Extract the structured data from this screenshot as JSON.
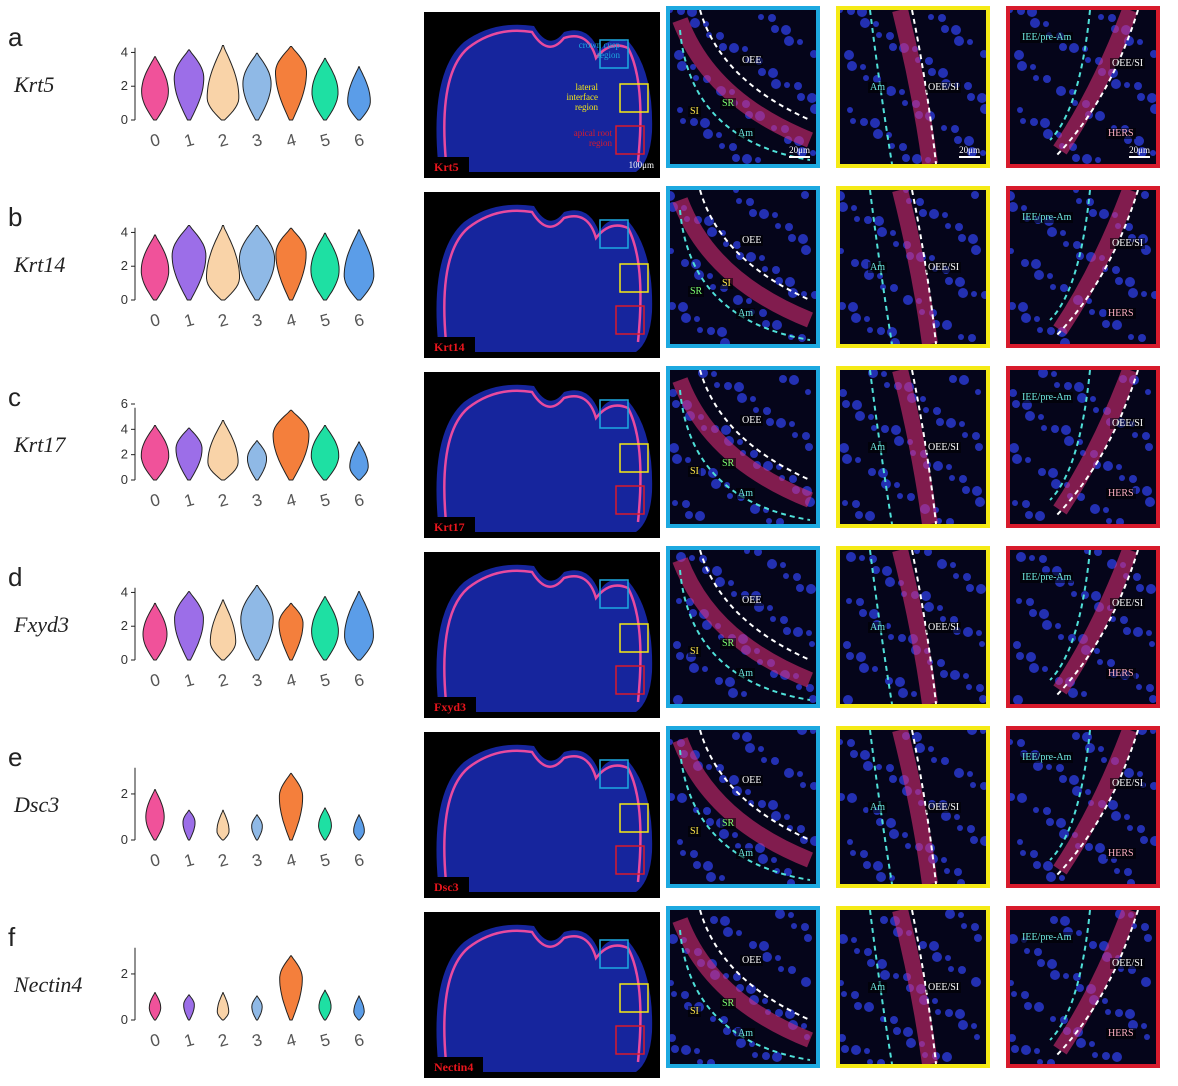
{
  "panels": [
    {
      "letter": "a",
      "gene": "Krt5",
      "stain": "Krt5",
      "ymax": 4,
      "yticks": [
        "0",
        "2",
        "4"
      ],
      "violins": [
        2.4,
        2.8,
        3.1,
        2.6,
        3.0,
        2.3,
        1.8
      ],
      "blue": {
        "labels": [
          "OEE",
          "SR",
          "SI",
          "Am"
        ]
      },
      "yellow": {
        "labels": [
          "Am",
          "OEE/SI"
        ]
      },
      "red": {
        "labels": [
          "IEE/pre-Am",
          "OEE/SI",
          "HERS"
        ]
      }
    },
    {
      "letter": "b",
      "gene": "Krt14",
      "stain": "Krt14",
      "ymax": 4,
      "yticks": [
        "0",
        "2",
        "4"
      ],
      "violins": [
        2.5,
        3.4,
        3.3,
        3.6,
        2.9,
        2.6,
        2.8
      ],
      "blue": {
        "labels": [
          "OEE",
          "SI",
          "SR",
          "Am"
        ]
      },
      "yellow": {
        "labels": [
          "Am",
          "OEE/SI"
        ]
      },
      "red": {
        "labels": [
          "IEE/pre-Am",
          "OEE/SI",
          "HERS"
        ]
      }
    },
    {
      "letter": "c",
      "gene": "Krt17",
      "stain": "Krt17",
      "ymax": 6,
      "yticks": [
        "0",
        "2",
        "4",
        "6"
      ],
      "violins": [
        2.5,
        2.3,
        2.9,
        1.3,
        3.7,
        2.5,
        1.2
      ],
      "blue": {
        "labels": [
          "OEE",
          "SR",
          "SI",
          "Am"
        ]
      },
      "yellow": {
        "labels": [
          "Am",
          "OEE/SI"
        ]
      },
      "red": {
        "labels": [
          "IEE/pre-Am",
          "OEE/SI",
          "HERS"
        ]
      }
    },
    {
      "letter": "d",
      "gene": "Fxyd3",
      "stain": "Fxyd3",
      "ymax": 4,
      "yticks": [
        "0",
        "2",
        "4"
      ],
      "violins": [
        2.0,
        2.7,
        2.2,
        3.2,
        2.0,
        2.4,
        2.7
      ],
      "blue": {
        "labels": [
          "OEE",
          "SR",
          "SI",
          "Am"
        ]
      },
      "yellow": {
        "labels": [
          "Am",
          "OEE/SI"
        ]
      },
      "red": {
        "labels": [
          "IEE/pre-Am",
          "OEE/SI",
          "HERS"
        ]
      }
    },
    {
      "letter": "e",
      "gene": "Dsc3",
      "stain": "Dsc3",
      "ymax": 3,
      "yticks": [
        "0",
        "2"
      ],
      "violins": [
        1.2,
        0.3,
        0.3,
        0.1,
        1.9,
        0.4,
        0.1
      ],
      "blue": {
        "labels": [
          "OEE",
          "SR",
          "SI",
          "Am"
        ]
      },
      "yellow": {
        "labels": [
          "Am",
          "OEE/SI"
        ]
      },
      "red": {
        "labels": [
          "IEE/pre-Am",
          "OEE/SI",
          "HERS"
        ]
      }
    },
    {
      "letter": "f",
      "gene": "Nectin4",
      "stain": "Nectin4",
      "ymax": 3,
      "yticks": [
        "0",
        "2"
      ],
      "violins": [
        0.2,
        0.1,
        0.2,
        0.05,
        1.8,
        0.3,
        0.05
      ],
      "blue": {
        "labels": [
          "OEE",
          "SR",
          "SI",
          "Am"
        ]
      },
      "yellow": {
        "labels": [
          "Am",
          "OEE/SI"
        ]
      },
      "red": {
        "labels": [
          "IEE/pre-Am",
          "OEE/SI",
          "HERS"
        ]
      }
    }
  ],
  "clusters": [
    "0",
    "1",
    "2",
    "3",
    "4",
    "5",
    "6"
  ],
  "cluster_colors": [
    "#f0529a",
    "#9c6ee8",
    "#f9d3a8",
    "#8fb9e6",
    "#f47f3c",
    "#1ee0a3",
    "#5b9de8"
  ],
  "overview_regions": {
    "crown": "crown cusp region",
    "lateral": "lateral interface region",
    "apical": "apical root region"
  },
  "scalebars": {
    "overview": "100μm",
    "zoom": "20μm"
  },
  "chart_data": [
    {
      "type": "violin",
      "title": "Krt5",
      "categories": [
        "0",
        "1",
        "2",
        "3",
        "4",
        "5",
        "6"
      ],
      "peak_values": [
        2.4,
        2.8,
        3.1,
        2.6,
        3.0,
        2.3,
        1.8
      ],
      "ylim": [
        0,
        4.5
      ]
    },
    {
      "type": "violin",
      "title": "Krt14",
      "categories": [
        "0",
        "1",
        "2",
        "3",
        "4",
        "5",
        "6"
      ],
      "peak_values": [
        2.5,
        3.4,
        3.3,
        3.6,
        2.9,
        2.6,
        2.8
      ],
      "ylim": [
        0,
        4.5
      ]
    },
    {
      "type": "violin",
      "title": "Krt17",
      "categories": [
        "0",
        "1",
        "2",
        "3",
        "4",
        "5",
        "6"
      ],
      "peak_values": [
        2.5,
        2.3,
        2.9,
        1.3,
        3.7,
        2.5,
        1.2
      ],
      "ylim": [
        0,
        6
      ]
    },
    {
      "type": "violin",
      "title": "Fxyd3",
      "categories": [
        "0",
        "1",
        "2",
        "3",
        "4",
        "5",
        "6"
      ],
      "peak_values": [
        2.0,
        2.7,
        2.2,
        3.2,
        2.0,
        2.4,
        2.7
      ],
      "ylim": [
        0,
        4.5
      ]
    },
    {
      "type": "violin",
      "title": "Dsc3",
      "categories": [
        "0",
        "1",
        "2",
        "3",
        "4",
        "5",
        "6"
      ],
      "peak_values": [
        1.2,
        0.3,
        0.3,
        0.1,
        1.9,
        0.4,
        0.1
      ],
      "ylim": [
        0,
        3.3
      ]
    },
    {
      "type": "violin",
      "title": "Nectin4",
      "categories": [
        "0",
        "1",
        "2",
        "3",
        "4",
        "5",
        "6"
      ],
      "peak_values": [
        0.2,
        0.1,
        0.2,
        0.05,
        1.8,
        0.3,
        0.05
      ],
      "ylim": [
        0,
        3.3
      ]
    }
  ]
}
